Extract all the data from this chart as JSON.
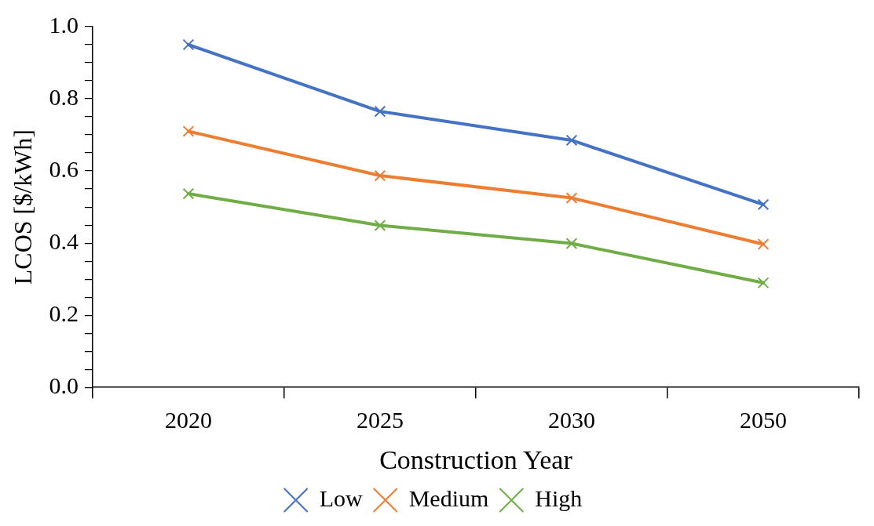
{
  "chart_data": {
    "type": "line",
    "xlabel": "Construction Year",
    "ylabel": "LCOS [$/kWh]",
    "categories": [
      "2020",
      "2025",
      "2030",
      "2050"
    ],
    "series": [
      {
        "name": "Low",
        "color": "#4472c4",
        "values": [
          0.95,
          0.765,
          0.685,
          0.507
        ]
      },
      {
        "name": "Medium",
        "color": "#ed7d31",
        "values": [
          0.71,
          0.587,
          0.525,
          0.397
        ]
      },
      {
        "name": "High",
        "color": "#70ad47",
        "values": [
          0.537,
          0.449,
          0.399,
          0.29
        ]
      }
    ],
    "ylim": [
      0,
      1
    ],
    "yticks": [
      {
        "value": 0,
        "label": "0.0"
      },
      {
        "value": 0.05,
        "label": null
      },
      {
        "value": 0.1,
        "label": null
      },
      {
        "value": 0.15,
        "label": null
      },
      {
        "value": 0.2,
        "label": "0.2"
      },
      {
        "value": 0.25,
        "label": null
      },
      {
        "value": 0.3,
        "label": null
      },
      {
        "value": 0.35,
        "label": null
      },
      {
        "value": 0.4,
        "label": "0.4"
      },
      {
        "value": 0.45,
        "label": null
      },
      {
        "value": 0.5,
        "label": null
      },
      {
        "value": 0.55,
        "label": null
      },
      {
        "value": 0.6,
        "label": "0.6"
      },
      {
        "value": 0.65,
        "label": null
      },
      {
        "value": 0.7,
        "label": null
      },
      {
        "value": 0.75,
        "label": null
      },
      {
        "value": 0.8,
        "label": "0.8"
      },
      {
        "value": 0.85,
        "label": null
      },
      {
        "value": 0.9,
        "label": null
      },
      {
        "value": 0.95,
        "label": null
      },
      {
        "value": 1,
        "label": "1.0"
      }
    ],
    "grid": false,
    "legend": "bottom",
    "marker": "cross",
    "line_style": "solid"
  }
}
